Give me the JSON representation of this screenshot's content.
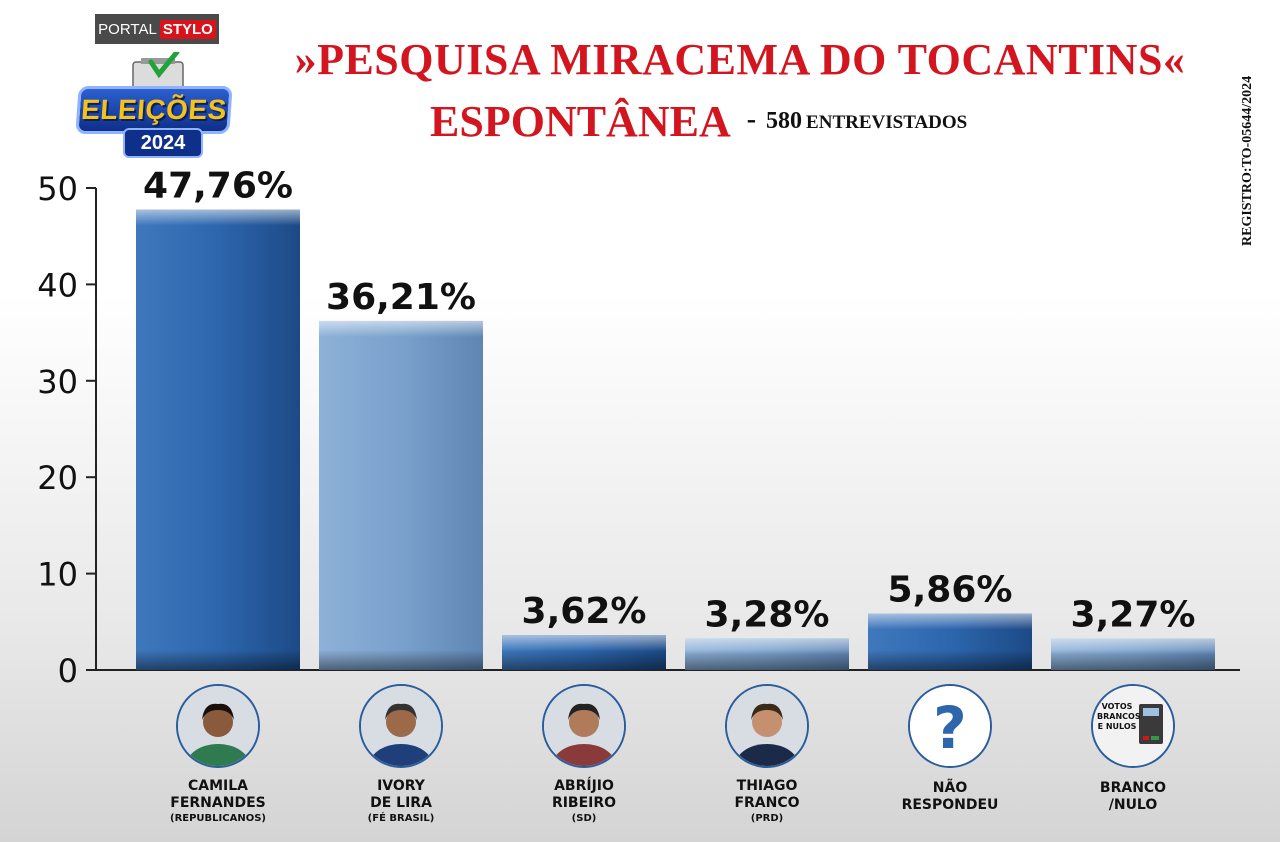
{
  "brand": {
    "portal": "PORTAL",
    "stylo": "STYLO",
    "badge": "ELEIÇÕES",
    "year": "2024"
  },
  "header": {
    "title": "»PESQUISA  MIRACEMA DO TOCANTINS«",
    "subtitle": "ESPONTÂNEA",
    "dash": "-",
    "count": "580",
    "count_label": "ENTREVISTADOS",
    "registro": "REGISTRO:TO-05644/2024"
  },
  "colors": {
    "title_red": "#d2151e",
    "bar_dark": "#2d66ad",
    "bar_light": "#7aa1cc",
    "axis": "#222222"
  },
  "chart_data": {
    "type": "bar",
    "title": "»PESQUISA  MIRACEMA DO TOCANTINS«",
    "subtitle": "ESPONTÂNEA - 580 ENTREVISTADOS",
    "categories": [
      "CAMILA FERNANDES",
      "IVORY DE LIRA",
      "ABRÍJIO RIBEIRO",
      "THIAGO FRANCO",
      "NÃO RESPONDEU",
      "BRANCO /NULO"
    ],
    "values": [
      47.76,
      36.21,
      3.62,
      3.28,
      5.86,
      3.27
    ],
    "value_labels": [
      "47,76%",
      "36,21%",
      "3,62%",
      "3,28%",
      "5,86%",
      "3,27%"
    ],
    "bar_colors": [
      "#2d66ad",
      "#7aa1cc",
      "#2d66ad",
      "#7aa1cc",
      "#2d66ad",
      "#7aa1cc"
    ],
    "yticks": [
      0,
      10,
      20,
      30,
      40,
      50
    ],
    "ylim": [
      0,
      50
    ],
    "grid": false,
    "legend": "none"
  },
  "candidates": [
    {
      "line1": "CAMILA",
      "line2": "FERNANDES",
      "party": "(REPUBLICANOS)",
      "icon": "person-photo-icon"
    },
    {
      "line1": "IVORY",
      "line2": "DE LIRA",
      "party": "(FÉ BRASIL)",
      "icon": "person-photo-icon"
    },
    {
      "line1": "ABRÍJIO",
      "line2": "RIBEIRO",
      "party": "(SD)",
      "icon": "person-photo-icon"
    },
    {
      "line1": "THIAGO",
      "line2": "FRANCO",
      "party": "(PRD)",
      "icon": "person-photo-icon"
    },
    {
      "line1": "NÃO",
      "line2": "RESPONDEU",
      "party": "",
      "icon": "question-mark-icon"
    },
    {
      "line1": "BRANCO",
      "line2": "/NULO",
      "party": "",
      "icon": "ballot-box-icon",
      "icon_text": "VOTOS BRANCOS E NULOS"
    }
  ]
}
